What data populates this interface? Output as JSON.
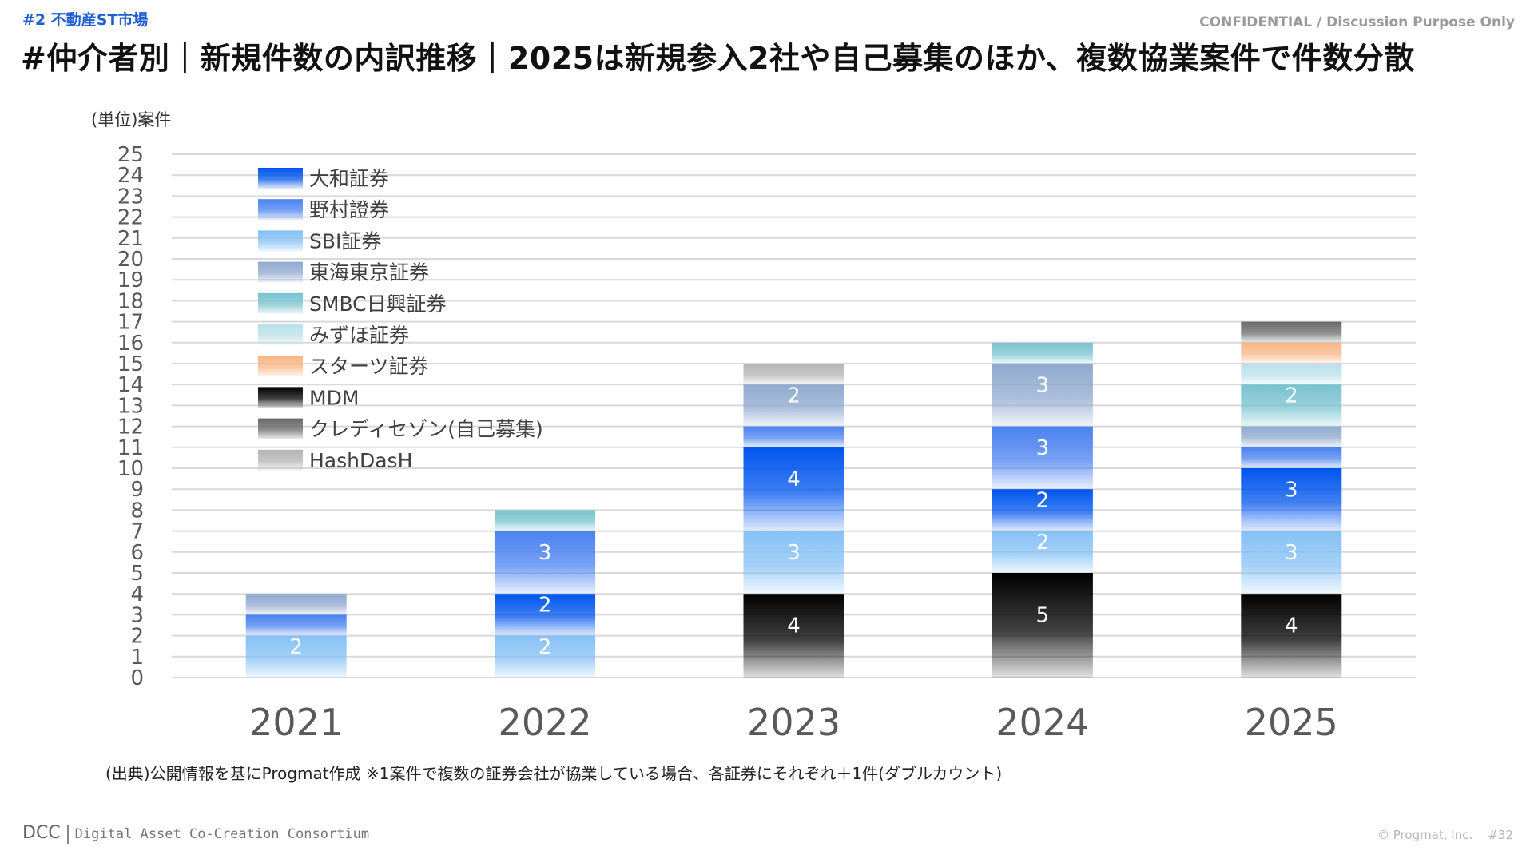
{
  "header": {
    "section_tag": "#2 不動産ST市場",
    "confidential": "CONFIDENTIAL / Discussion Purpose Only",
    "title": "#仲介者別｜新規件数の内訳推移｜2025は新規参入2社や自己募集のほか、複数協業案件で件数分散"
  },
  "unit_label": "(単位)案件",
  "source_note": "(出典)公開情報を基にProgmat作成 ※1案件で複数の証券会社が協業している場合、各証券にそれぞれ＋1件(ダブルカウント)",
  "footer": {
    "logo_mark": "DCC",
    "logo_text": "Digital Asset Co-Creation Consortium",
    "copyright": "© Progmat, Inc.",
    "page_number": "#32"
  },
  "chart_data": {
    "type": "bar",
    "stacked": true,
    "categories": [
      "2021",
      "2022",
      "2023",
      "2024",
      "2025"
    ],
    "ylim": [
      0,
      25
    ],
    "yticks": [
      0,
      1,
      2,
      3,
      4,
      5,
      6,
      7,
      8,
      9,
      10,
      11,
      12,
      13,
      14,
      15,
      16,
      17,
      18,
      19,
      20,
      21,
      22,
      23,
      24,
      25
    ],
    "ylabel": "(単位)案件",
    "grid": true,
    "legend_position": "top-left",
    "stack_order": [
      "MDM",
      "SBI証券",
      "大和証券",
      "野村證券",
      "東海東京証券",
      "SMBC日興証券",
      "みずほ証券",
      "スターツ証券",
      "クレディセゾン(自己募集)",
      "HashDasH"
    ],
    "series": [
      {
        "name": "大和証券",
        "color": "#0055ee",
        "values": [
          0,
          2,
          4,
          2,
          3
        ]
      },
      {
        "name": "野村證券",
        "color": "#4a82f0",
        "values": [
          1,
          3,
          1,
          3,
          1
        ]
      },
      {
        "name": "SBI証券",
        "color": "#86c1f5",
        "values": [
          2,
          2,
          3,
          2,
          3
        ]
      },
      {
        "name": "東海東京証券",
        "color": "#8fa9cf",
        "values": [
          1,
          0,
          2,
          3,
          1
        ]
      },
      {
        "name": "SMBC日興証券",
        "color": "#79c2cf",
        "values": [
          0,
          1,
          0,
          1,
          2
        ]
      },
      {
        "name": "みずほ証券",
        "color": "#b9e0ea",
        "values": [
          0,
          0,
          0,
          0,
          1
        ]
      },
      {
        "name": "スターツ証券",
        "color": "#f7b685",
        "values": [
          0,
          0,
          0,
          0,
          1
        ]
      },
      {
        "name": "MDM",
        "color": "#000000",
        "values": [
          0,
          0,
          4,
          5,
          4
        ]
      },
      {
        "name": "クレディセゾン(自己募集)",
        "color": "#6a6a6a",
        "values": [
          0,
          0,
          0,
          0,
          1
        ]
      },
      {
        "name": "HashDasH",
        "color": "#b4b4b4",
        "values": [
          0,
          0,
          1,
          0,
          0
        ]
      }
    ]
  }
}
